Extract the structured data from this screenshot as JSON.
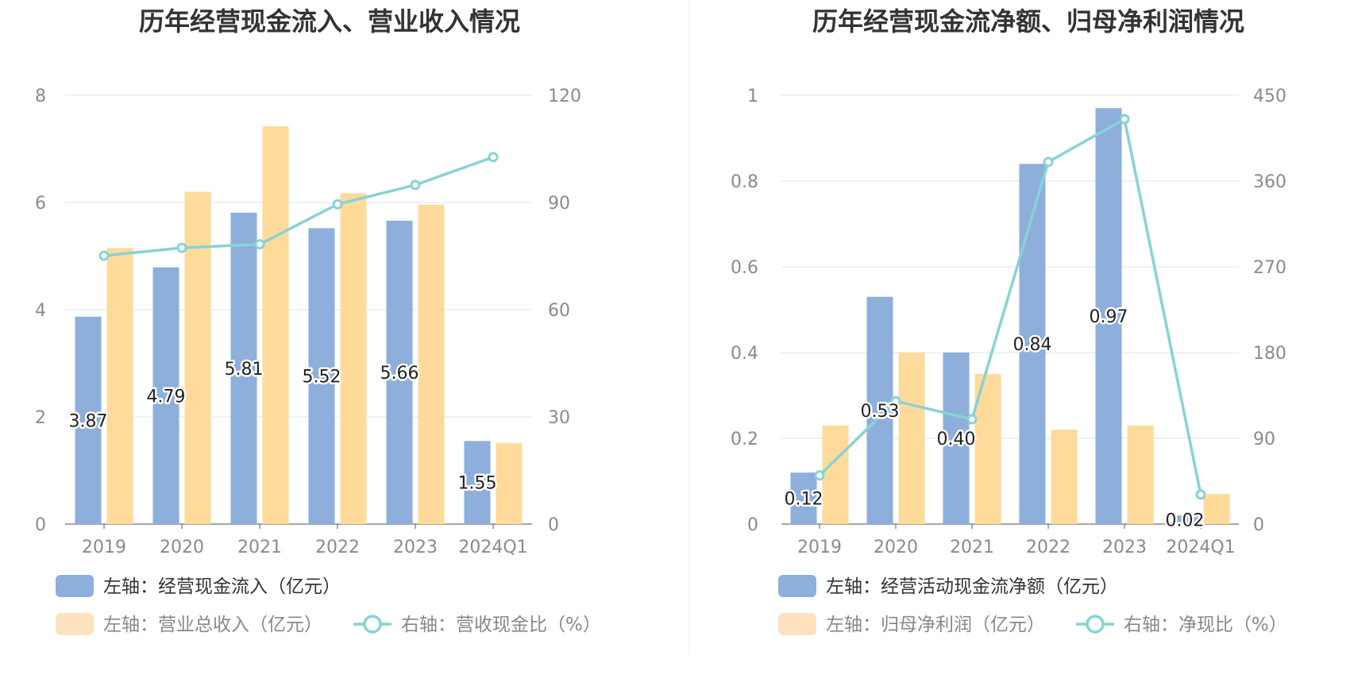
{
  "colors": {
    "bar_primary": "#8eaedb",
    "bar_secondary": "#fedb9a",
    "bar_secondary_legend": "#fde4bf",
    "line": "#86d3d6",
    "grid": "#dde3f0",
    "divider": "#eeeeee"
  },
  "chart_data": [
    {
      "type": "bar",
      "title": "历年经营现金流入、营业收入情况",
      "categories": [
        "2019",
        "2020",
        "2021",
        "2022",
        "2023",
        "2024Q1"
      ],
      "left_axis": {
        "ylim": [
          0,
          8
        ],
        "ticks": [
          0,
          2,
          4,
          6,
          8
        ]
      },
      "right_axis": {
        "ylim": [
          0,
          120
        ],
        "ticks": [
          0,
          30,
          60,
          90,
          120
        ]
      },
      "series": [
        {
          "name": "左轴：经营现金流入（亿元）",
          "axis": "left",
          "kind": "bar",
          "values": [
            3.87,
            4.79,
            5.81,
            5.52,
            5.66,
            1.55
          ],
          "labels": [
            "3.87",
            "4.79",
            "5.81",
            "5.52",
            "5.66",
            "1.55"
          ]
        },
        {
          "name": "左轴：营业总收入（亿元）",
          "axis": "left",
          "kind": "bar",
          "values": [
            5.15,
            6.2,
            7.42,
            6.17,
            5.96,
            1.51
          ]
        },
        {
          "name": "右轴：营收现金比（%）",
          "axis": "right",
          "kind": "line",
          "values": [
            75.1,
            77.3,
            78.3,
            89.5,
            94.9,
            102.7
          ]
        }
      ],
      "legend_rows": [
        [
          0
        ],
        [
          1,
          2
        ]
      ],
      "grid": true
    },
    {
      "type": "bar",
      "title": "历年经营现金流净额、归母净利润情况",
      "categories": [
        "2019",
        "2020",
        "2021",
        "2022",
        "2023",
        "2024Q1"
      ],
      "left_axis": {
        "ylim": [
          0,
          1
        ],
        "ticks": [
          "0",
          "0.2",
          "0.4",
          "0.6",
          "0.8",
          "1"
        ]
      },
      "right_axis": {
        "ylim": [
          0,
          450
        ],
        "ticks": [
          0,
          90,
          180,
          270,
          360,
          450
        ]
      },
      "series": [
        {
          "name": "左轴：经营活动现金流净额（亿元）",
          "axis": "left",
          "kind": "bar",
          "values": [
            0.12,
            0.53,
            0.4,
            0.84,
            0.97,
            0.02
          ],
          "labels": [
            "0.12",
            "0.53",
            "0.40",
            "0.84",
            "0.97",
            "0.02"
          ]
        },
        {
          "name": "左轴：归母净利润（亿元）",
          "axis": "left",
          "kind": "bar",
          "values": [
            0.23,
            0.4,
            0.35,
            0.22,
            0.23,
            0.07
          ]
        },
        {
          "name": "右轴：净现比（%）",
          "axis": "right",
          "kind": "line",
          "values": [
            51,
            129,
            110,
            380,
            425,
            31
          ]
        }
      ],
      "legend_rows": [
        [
          0
        ],
        [
          1,
          2
        ]
      ],
      "grid": true
    }
  ]
}
